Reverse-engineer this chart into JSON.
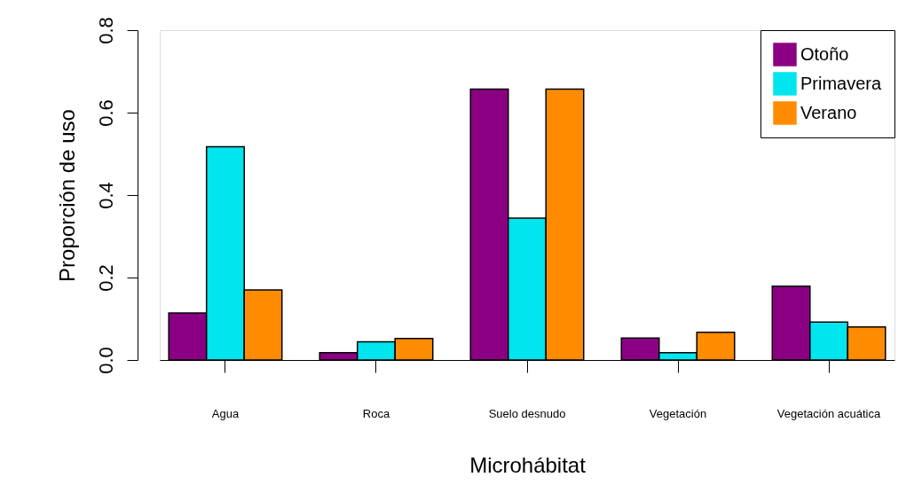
{
  "chart_data": {
    "type": "bar",
    "xlabel": "Microhábitat",
    "ylabel": "Proporción de uso",
    "categories": [
      "Agua",
      "Roca",
      "Suelo desnudo",
      "Vegetación",
      "Vegetación acuática"
    ],
    "series": [
      {
        "name": "Otoño",
        "color": "#8b0082",
        "values": [
          0.114,
          0.018,
          0.657,
          0.053,
          0.179
        ]
      },
      {
        "name": "Primavera",
        "color": "#00e5ee",
        "values": [
          0.517,
          0.044,
          0.344,
          0.018,
          0.092
        ]
      },
      {
        "name": "Verano",
        "color": "#ff8c00",
        "values": [
          0.17,
          0.052,
          0.657,
          0.067,
          0.08
        ]
      }
    ],
    "ylim": [
      0,
      0.8
    ],
    "yticks": [
      {
        "value": 0,
        "label": "0.0"
      },
      {
        "value": 0.2,
        "label": "0.2"
      },
      {
        "value": 0.4,
        "label": "0.4"
      },
      {
        "value": 0.6,
        "label": "0.6"
      },
      {
        "value": 0.8,
        "label": "0.8"
      }
    ],
    "grid": false,
    "legend": "top right"
  }
}
